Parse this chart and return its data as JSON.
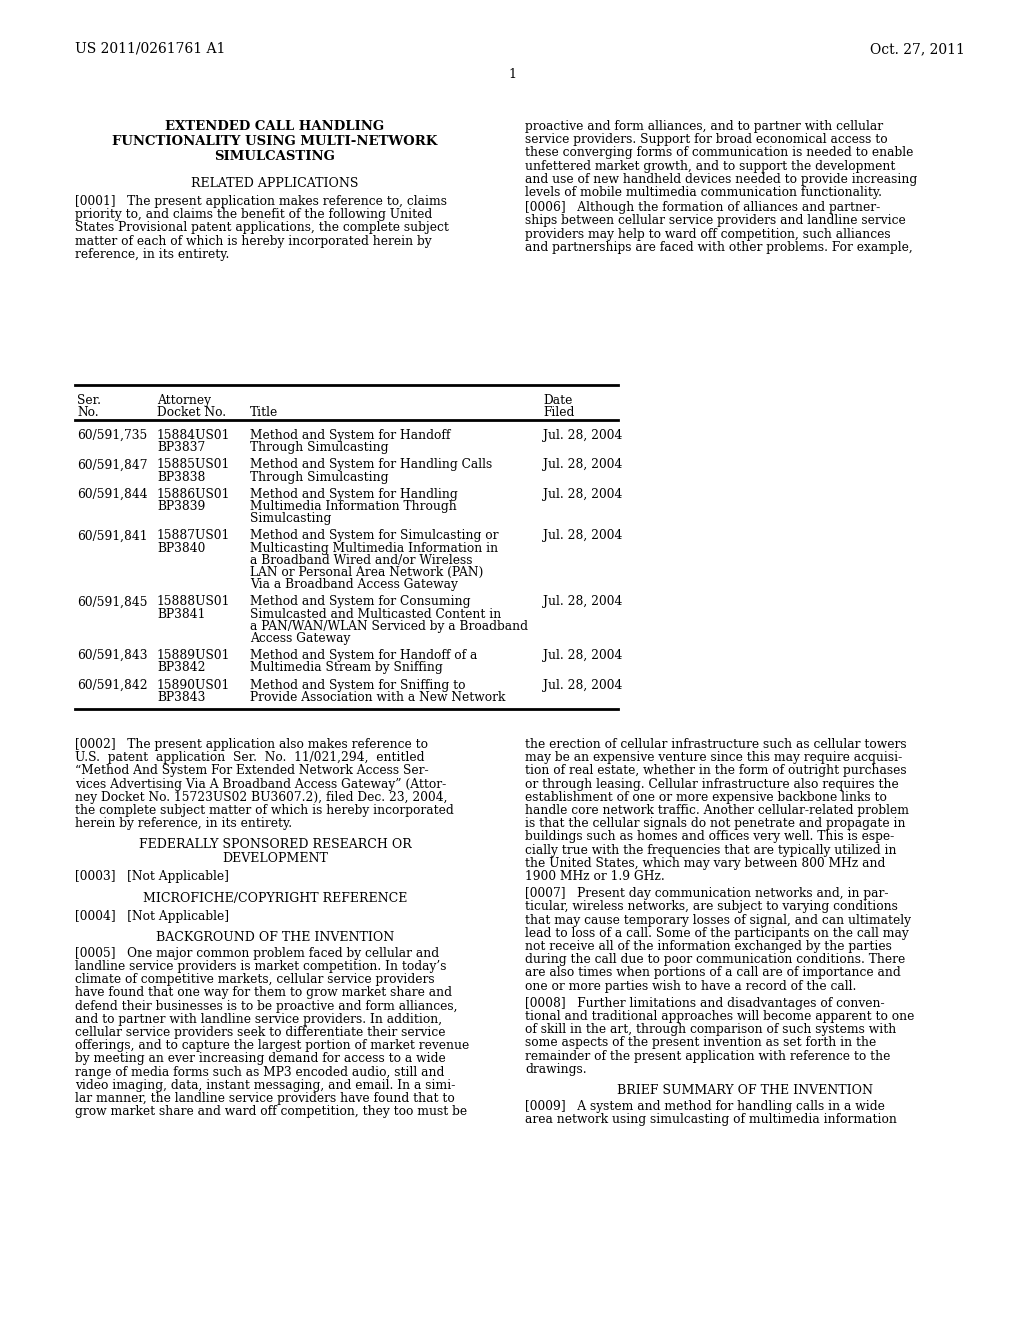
{
  "bg_color": "#ffffff",
  "header_left": "US 2011/0261761 A1",
  "header_right": "Oct. 27, 2011",
  "page_number": "1",
  "title_lines": [
    "EXTENDED CALL HANDLING",
    "FUNCTIONALITY USING MULTI-NETWORK",
    "SIMULCASTING"
  ],
  "section1_heading": "RELATED APPLICATIONS",
  "para0001": "[0001]   The present application makes reference to, claims priority to, and claims the benefit of the following United States Provisional patent applications, the complete subject matter of each of which is hereby incorporated herein by reference, in its entirety.",
  "table_rows": [
    {
      "ser": "60/591,735",
      "docket_line1": "15884US01",
      "docket_line2": "BP3837",
      "title_lines": [
        "Method and System for Handoff",
        "Through Simulcasting"
      ],
      "date": "Jul. 28, 2004"
    },
    {
      "ser": "60/591,847",
      "docket_line1": "15885US01",
      "docket_line2": "BP3838",
      "title_lines": [
        "Method and System for Handling Calls",
        "Through Simulcasting"
      ],
      "date": "Jul. 28, 2004"
    },
    {
      "ser": "60/591,844",
      "docket_line1": "15886US01",
      "docket_line2": "BP3839",
      "title_lines": [
        "Method and System for Handling",
        "Multimedia Information Through",
        "Simulcasting"
      ],
      "date": "Jul. 28, 2004"
    },
    {
      "ser": "60/591,841",
      "docket_line1": "15887US01",
      "docket_line2": "BP3840",
      "title_lines": [
        "Method and System for Simulcasting or",
        "Multicasting Multimedia Information in",
        "a Broadband Wired and/or Wireless",
        "LAN or Personal Area Network (PAN)",
        "Via a Broadband Access Gateway"
      ],
      "date": "Jul. 28, 2004"
    },
    {
      "ser": "60/591,845",
      "docket_line1": "15888US01",
      "docket_line2": "BP3841",
      "title_lines": [
        "Method and System for Consuming",
        "Simulcasted and Multicasted Content in",
        "a PAN/WAN/WLAN Serviced by a Broadband",
        "Access Gateway"
      ],
      "date": "Jul. 28, 2004"
    },
    {
      "ser": "60/591,843",
      "docket_line1": "15889US01",
      "docket_line2": "BP3842",
      "title_lines": [
        "Method and System for Handoff of a",
        "Multimedia Stream by Sniffing"
      ],
      "date": "Jul. 28, 2004"
    },
    {
      "ser": "60/591,842",
      "docket_line1": "15890US01",
      "docket_line2": "BP3843",
      "title_lines": [
        "Method and System for Sniffing to",
        "Provide Association with a New Network"
      ],
      "date": "Jul. 28, 2004"
    }
  ],
  "right_col_top_lines": [
    "proactive and form alliances, and to partner with cellular",
    "service providers. Support for broad economical access to",
    "these converging forms of communication is needed to enable",
    "unfettered market growth, and to support the development",
    "and use of new handheld devices needed to provide increasing",
    "levels of mobile multimedia communication functionality."
  ],
  "para0006_lines": [
    "[0006]   Although the formation of alliances and partner-",
    "ships between cellular service providers and landline service",
    "providers may help to ward off competition, such alliances",
    "and partnerships are faced with other problems. For example,"
  ],
  "para0002_lines": [
    "[0002]   The present application also makes reference to",
    "U.S.  patent  application  Ser.  No.  11/021,294,  entitled",
    "“Method And System For Extended Network Access Ser-",
    "vices Advertising Via A Broadband Access Gateway” (Attor-",
    "ney Docket No. 15723US02 BU3607.2), filed Dec. 23, 2004,",
    "the complete subject matter of which is hereby incorporated",
    "herein by reference, in its entirety."
  ],
  "section2_lines": [
    "FEDERALLY SPONSORED RESEARCH OR",
    "DEVELOPMENT"
  ],
  "para0003": "[0003]   [Not Applicable]",
  "section3": "MICROFICHE/COPYRIGHT REFERENCE",
  "para0004": "[0004]   [Not Applicable]",
  "section4": "BACKGROUND OF THE INVENTION",
  "para0005_lines": [
    "[0005]   One major common problem faced by cellular and",
    "landline service providers is market competition. In today’s",
    "climate of competitive markets, cellular service providers",
    "have found that one way for them to grow market share and",
    "defend their businesses is to be proactive and form alliances,",
    "and to partner with landline service providers. In addition,",
    "cellular service providers seek to differentiate their service",
    "offerings, and to capture the largest portion of market revenue",
    "by meeting an ever increasing demand for access to a wide",
    "range of media forms such as MP3 encoded audio, still and",
    "video imaging, data, instant messaging, and email. In a simi-",
    "lar manner, the landline service providers have found that to",
    "grow market share and ward off competition, they too must be"
  ],
  "right_col_bottom1_lines": [
    "the erection of cellular infrastructure such as cellular towers",
    "may be an expensive venture since this may require acquisi-",
    "tion of real estate, whether in the form of outright purchases",
    "or through leasing. Cellular infrastructure also requires the",
    "establishment of one or more expensive backbone links to",
    "handle core network traffic. Another cellular-related problem",
    "is that the cellular signals do not penetrate and propagate in",
    "buildings such as homes and offices very well. This is espe-",
    "cially true with the frequencies that are typically utilized in",
    "the United States, which may vary between 800 MHz and",
    "1900 MHz or 1.9 GHz."
  ],
  "para0007_lines": [
    "[0007]   Present day communication networks and, in par-",
    "ticular, wireless networks, are subject to varying conditions",
    "that may cause temporary losses of signal, and can ultimately",
    "lead to loss of a call. Some of the participants on the call may",
    "not receive all of the information exchanged by the parties",
    "during the call due to poor communication conditions. There",
    "are also times when portions of a call are of importance and",
    "one or more parties wish to have a record of the call."
  ],
  "para0008_lines": [
    "[0008]   Further limitations and disadvantages of conven-",
    "tional and traditional approaches will become apparent to one",
    "of skill in the art, through comparison of such systems with",
    "some aspects of the present invention as set forth in the",
    "remainder of the present application with reference to the",
    "drawings."
  ],
  "section5": "BRIEF SUMMARY OF THE INVENTION",
  "para0009_lines": [
    "[0009]   A system and method for handling calls in a wide",
    "area network using simulcasting of multimedia information"
  ]
}
